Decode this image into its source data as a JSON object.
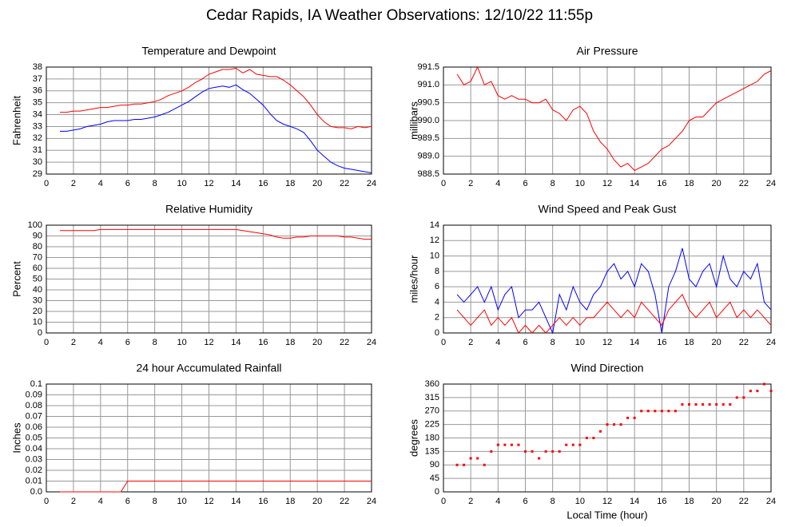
{
  "title": "Cedar Rapids, IA Weather Observations: 12/10/22 11:55p",
  "chart_data": [
    {
      "type": "line",
      "title": "Temperature and Dewpoint",
      "ylabel": "Fahrenheit",
      "xlim": [
        0,
        24
      ],
      "xticks": [
        0,
        2,
        4,
        6,
        8,
        10,
        12,
        14,
        16,
        18,
        20,
        22,
        24
      ],
      "ylim": [
        29,
        38
      ],
      "yticks": [
        29,
        30,
        31,
        32,
        33,
        34,
        35,
        36,
        37,
        38
      ],
      "grid": true,
      "x": [
        1,
        1.5,
        2,
        2.5,
        3,
        3.5,
        4,
        4.5,
        5,
        5.5,
        6,
        6.5,
        7,
        7.5,
        8,
        8.5,
        9,
        9.5,
        10,
        10.5,
        11,
        11.5,
        12,
        12.5,
        13,
        13.5,
        14,
        14.5,
        15,
        15.5,
        16,
        16.5,
        17,
        17.5,
        18,
        18.5,
        19,
        19.5,
        20,
        20.5,
        21,
        21.5,
        22,
        22.5,
        23,
        23.5,
        24
      ],
      "series": [
        {
          "color": "#ff0000",
          "values": [
            34.2,
            34.2,
            34.3,
            34.3,
            34.4,
            34.5,
            34.6,
            34.6,
            34.7,
            34.8,
            34.8,
            34.9,
            34.9,
            35.0,
            35.1,
            35.3,
            35.6,
            35.8,
            36.0,
            36.3,
            36.7,
            37.0,
            37.4,
            37.6,
            37.8,
            37.8,
            37.9,
            37.5,
            37.8,
            37.4,
            37.3,
            37.2,
            37.2,
            36.9,
            36.5,
            36.0,
            35.5,
            34.8,
            34.0,
            33.4,
            33.0,
            32.9,
            32.9,
            32.8,
            33.0,
            32.9,
            33.0
          ]
        },
        {
          "color": "#0000ff",
          "values": [
            32.6,
            32.6,
            32.7,
            32.8,
            33.0,
            33.1,
            33.2,
            33.4,
            33.5,
            33.5,
            33.5,
            33.6,
            33.6,
            33.7,
            33.8,
            34.0,
            34.2,
            34.5,
            34.8,
            35.1,
            35.5,
            35.9,
            36.2,
            36.3,
            36.4,
            36.3,
            36.5,
            36.1,
            35.8,
            35.3,
            34.8,
            34.1,
            33.5,
            33.2,
            33.0,
            32.8,
            32.5,
            31.8,
            31.0,
            30.5,
            30.0,
            29.7,
            29.5,
            29.4,
            29.3,
            29.2,
            29.1
          ]
        }
      ]
    },
    {
      "type": "line",
      "title": "Air Pressure",
      "ylabel": "millibars",
      "xlim": [
        0,
        24
      ],
      "xticks": [
        0,
        2,
        4,
        6,
        8,
        10,
        12,
        14,
        16,
        18,
        20,
        22,
        24
      ],
      "ylim": [
        988.5,
        991.5
      ],
      "yticks": [
        988.5,
        {
          "value": 989,
          "label": "989.0"
        },
        989.5,
        {
          "value": 990,
          "label": "990.0"
        },
        990.5,
        {
          "value": 991,
          "label": "991.0"
        },
        991.5
      ],
      "grid": true,
      "x": [
        1,
        1.5,
        2,
        2.5,
        3,
        3.5,
        4,
        4.5,
        5,
        5.5,
        6,
        6.5,
        7,
        7.5,
        8,
        8.5,
        9,
        9.5,
        10,
        10.5,
        11,
        11.5,
        12,
        12.5,
        13,
        13.5,
        14,
        14.5,
        15,
        15.5,
        16,
        16.5,
        17,
        17.5,
        18,
        18.5,
        19,
        19.5,
        20,
        20.5,
        21,
        21.5,
        22,
        22.5,
        23,
        23.5,
        24
      ],
      "series": [
        {
          "color": "#ff0000",
          "values": [
            991.3,
            991.0,
            991.1,
            991.5,
            991.0,
            991.1,
            990.7,
            990.6,
            990.7,
            990.6,
            990.6,
            990.5,
            990.5,
            990.6,
            990.3,
            990.2,
            990.0,
            990.3,
            990.4,
            990.2,
            989.7,
            989.4,
            989.2,
            988.9,
            988.7,
            988.8,
            988.6,
            988.7,
            988.8,
            989.0,
            989.2,
            989.3,
            989.5,
            989.7,
            990.0,
            990.1,
            990.1,
            990.3,
            990.5,
            990.6,
            990.7,
            990.8,
            990.9,
            991.0,
            991.1,
            991.3,
            991.4
          ]
        }
      ]
    },
    {
      "type": "line",
      "title": "Relative Humidity",
      "ylabel": "Percent",
      "xlim": [
        0,
        24
      ],
      "xticks": [
        0,
        2,
        4,
        6,
        8,
        10,
        12,
        14,
        16,
        18,
        20,
        22,
        24
      ],
      "ylim": [
        0,
        100
      ],
      "yticks": [
        0,
        10,
        20,
        30,
        40,
        50,
        60,
        70,
        80,
        90,
        100
      ],
      "grid": true,
      "x": [
        1,
        1.5,
        2,
        2.5,
        3,
        3.5,
        4,
        4.5,
        5,
        5.5,
        6,
        6.5,
        7,
        7.5,
        8,
        8.5,
        9,
        9.5,
        10,
        10.5,
        11,
        11.5,
        12,
        12.5,
        13,
        13.5,
        14,
        14.5,
        15,
        15.5,
        16,
        16.5,
        17,
        17.5,
        18,
        18.5,
        19,
        19.5,
        20,
        20.5,
        21,
        21.5,
        22,
        22.5,
        23,
        23.5,
        24
      ],
      "series": [
        {
          "color": "#ff0000",
          "values": [
            95,
            95,
            95,
            95,
            95,
            95,
            96,
            96,
            96,
            96,
            96,
            96,
            96,
            96,
            96,
            96,
            96,
            96,
            96,
            96,
            96,
            96,
            96,
            96,
            96,
            96,
            96,
            95,
            94,
            93,
            92,
            91,
            89,
            88,
            88,
            89,
            89,
            90,
            90,
            90,
            90,
            90,
            89,
            89,
            88,
            87,
            87
          ]
        }
      ]
    },
    {
      "type": "line",
      "title": "Wind Speed and Peak Gust",
      "ylabel": "miles/hour",
      "xlim": [
        0,
        24
      ],
      "xticks": [
        0,
        2,
        4,
        6,
        8,
        10,
        12,
        14,
        16,
        18,
        20,
        22,
        24
      ],
      "ylim": [
        0,
        14
      ],
      "yticks": [
        0,
        2,
        4,
        6,
        8,
        10,
        12,
        14
      ],
      "grid": true,
      "x": [
        1,
        1.5,
        2,
        2.5,
        3,
        3.5,
        4,
        4.5,
        5,
        5.5,
        6,
        6.5,
        7,
        7.5,
        8,
        8.5,
        9,
        9.5,
        10,
        10.5,
        11,
        11.5,
        12,
        12.5,
        13,
        13.5,
        14,
        14.5,
        15,
        15.5,
        16,
        16.5,
        17,
        17.5,
        18,
        18.5,
        19,
        19.5,
        20,
        20.5,
        21,
        21.5,
        22,
        22.5,
        23,
        23.5,
        24
      ],
      "series": [
        {
          "color": "#0000ff",
          "values": [
            5,
            4,
            5,
            6,
            4,
            6,
            3,
            5,
            6,
            2,
            3,
            3,
            4,
            2,
            0,
            5,
            3,
            6,
            4,
            3,
            5,
            6,
            8,
            9,
            7,
            8,
            6,
            9,
            8,
            5,
            0,
            6,
            8,
            11,
            7,
            6,
            8,
            9,
            6,
            10,
            7,
            6,
            8,
            7,
            9,
            4,
            3
          ]
        },
        {
          "color": "#ff0000",
          "values": [
            3,
            2,
            1,
            2,
            3,
            1,
            2,
            1,
            2,
            0,
            1,
            0,
            1,
            0,
            1,
            2,
            1,
            2,
            1,
            2,
            2,
            3,
            4,
            3,
            2,
            3,
            2,
            4,
            3,
            2,
            1,
            3,
            4,
            5,
            3,
            2,
            3,
            4,
            2,
            3,
            4,
            2,
            3,
            2,
            3,
            2,
            1
          ]
        }
      ]
    },
    {
      "type": "line",
      "title": "24 hour Accumulated Rainfall",
      "ylabel": "Inches",
      "xlim": [
        0,
        24
      ],
      "xticks": [
        0,
        2,
        4,
        6,
        8,
        10,
        12,
        14,
        16,
        18,
        20,
        22,
        24
      ],
      "ylim": [
        0,
        0.1
      ],
      "yticks": [
        {
          "value": 0,
          "label": "0.0"
        },
        0.01,
        0.02,
        0.03,
        0.04,
        0.05,
        0.06,
        0.07,
        0.08,
        0.09,
        0.1
      ],
      "grid": true,
      "x": [
        1,
        1.5,
        2,
        2.5,
        3,
        3.5,
        4,
        4.5,
        5,
        5.5,
        6,
        6.5,
        7,
        7.5,
        8,
        8.5,
        9,
        9.5,
        10,
        10.5,
        11,
        11.5,
        12,
        12.5,
        13,
        13.5,
        14,
        14.5,
        15,
        15.5,
        16,
        16.5,
        17,
        17.5,
        18,
        18.5,
        19,
        19.5,
        20,
        20.5,
        21,
        21.5,
        22,
        22.5,
        23,
        23.5,
        24
      ],
      "series": [
        {
          "color": "#ff0000",
          "values": [
            0,
            0,
            0,
            0,
            0,
            0,
            0,
            0,
            0,
            0,
            0.01,
            0.01,
            0.01,
            0.01,
            0.01,
            0.01,
            0.01,
            0.01,
            0.01,
            0.01,
            0.01,
            0.01,
            0.01,
            0.01,
            0.01,
            0.01,
            0.01,
            0.01,
            0.01,
            0.01,
            0.01,
            0.01,
            0.01,
            0.01,
            0.01,
            0.01,
            0.01,
            0.01,
            0.01,
            0.01,
            0.01,
            0.01,
            0.01,
            0.01,
            0.01,
            0.01,
            0.01
          ]
        }
      ]
    },
    {
      "type": "scatter",
      "title": "Wind Direction",
      "ylabel": "degrees",
      "xlabel": "Local Time (hour)",
      "xlim": [
        0,
        24
      ],
      "xticks": [
        0,
        2,
        4,
        6,
        8,
        10,
        12,
        14,
        16,
        18,
        20,
        22,
        24
      ],
      "ylim": [
        0,
        360
      ],
      "yticks": [
        0,
        45,
        90,
        135,
        180,
        225,
        270,
        315,
        360
      ],
      "grid": true,
      "x": [
        1,
        1.5,
        2,
        2.5,
        3,
        3.5,
        4,
        4.5,
        5,
        5.5,
        6,
        6.5,
        7,
        7.5,
        8,
        8.5,
        9,
        9.5,
        10,
        10.5,
        11,
        11.5,
        12,
        12.5,
        13,
        13.5,
        14,
        14.5,
        15,
        15.5,
        16,
        16.5,
        17,
        17.5,
        18,
        18.5,
        19,
        19.5,
        20,
        20.5,
        21,
        21.5,
        22,
        22.5,
        23,
        23.5,
        24
      ],
      "series": [
        {
          "color": "#ff0000",
          "values": [
            90,
            90,
            112,
            112,
            90,
            135,
            157,
            157,
            157,
            157,
            135,
            135,
            112,
            135,
            135,
            135,
            157,
            157,
            157,
            180,
            180,
            202,
            225,
            225,
            225,
            247,
            247,
            270,
            270,
            270,
            270,
            270,
            270,
            292,
            292,
            292,
            292,
            292,
            292,
            292,
            292,
            315,
            315,
            337,
            337,
            360,
            337
          ]
        }
      ]
    }
  ]
}
